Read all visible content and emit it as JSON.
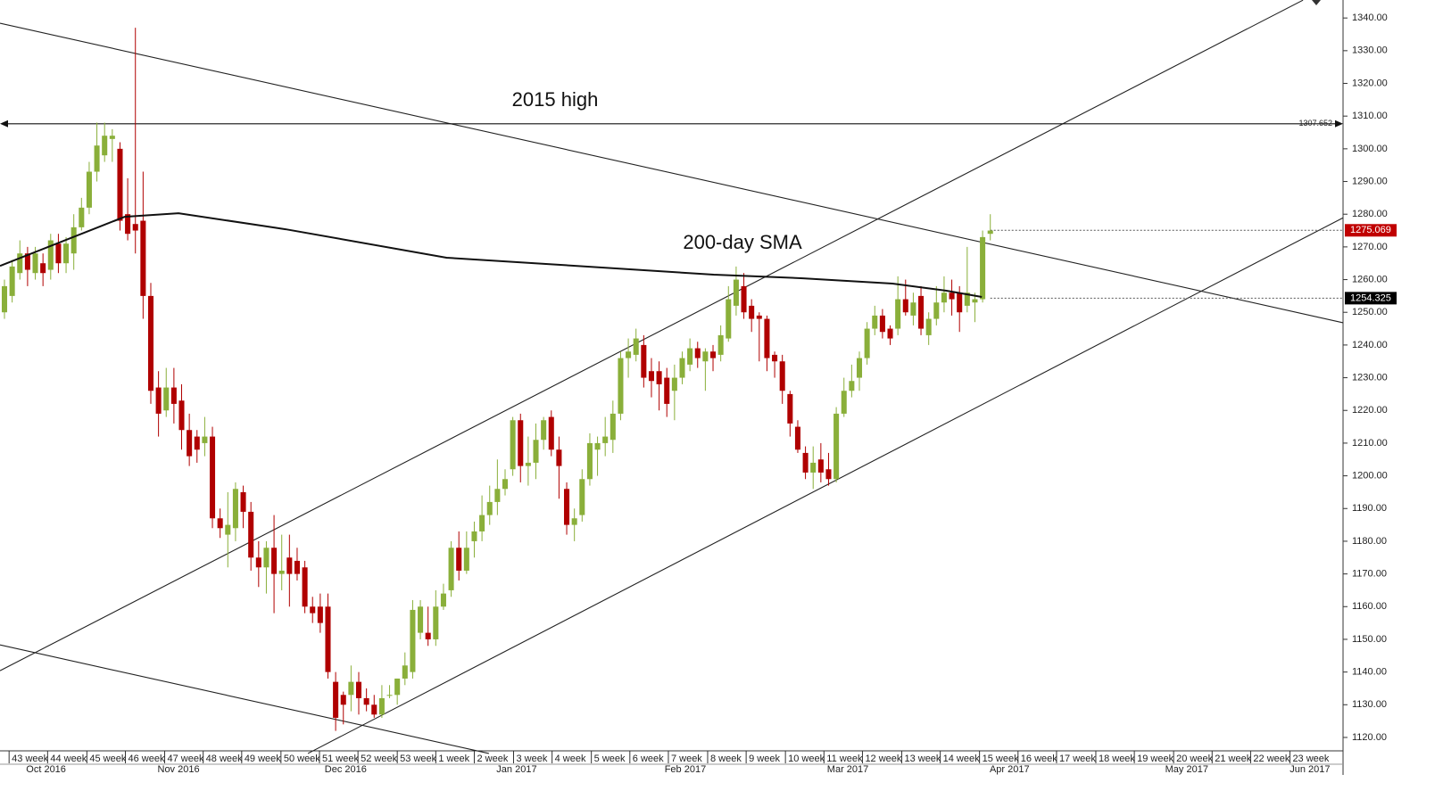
{
  "chart_data": {
    "type": "candlestick",
    "up_color": "#8aaf3a",
    "down_color": "#b00000",
    "xlim": [
      -0.58,
      173.8
    ],
    "ylim": [
      1115.9,
      1345.5
    ],
    "yticks": [
      {
        "value": 1120,
        "label": "1120.00"
      },
      {
        "value": 1130,
        "label": "1130.00"
      },
      {
        "value": 1140,
        "label": "1140.00"
      },
      {
        "value": 1150,
        "label": "1150.00"
      },
      {
        "value": 1160,
        "label": "1160.00"
      },
      {
        "value": 1170,
        "label": "1170.00"
      },
      {
        "value": 1180,
        "label": "1180.00"
      },
      {
        "value": 1190,
        "label": "1190.00"
      },
      {
        "value": 1200,
        "label": "1200.00"
      },
      {
        "value": 1210,
        "label": "1210.00"
      },
      {
        "value": 1220,
        "label": "1220.00"
      },
      {
        "value": 1230,
        "label": "1230.00"
      },
      {
        "value": 1240,
        "label": "1240.00"
      },
      {
        "value": 1250,
        "label": "1250.00"
      },
      {
        "value": 1260,
        "label": "1260.00"
      },
      {
        "value": 1270,
        "label": "1270.00"
      },
      {
        "value": 1280,
        "label": "1280.00"
      },
      {
        "value": 1290,
        "label": "1290.00"
      },
      {
        "value": 1300,
        "label": "1300.00"
      },
      {
        "value": 1310,
        "label": "1310.00"
      },
      {
        "value": 1320,
        "label": "1320.00"
      },
      {
        "value": 1330,
        "label": "1330.00"
      },
      {
        "value": 1340,
        "label": "1340.00"
      }
    ],
    "xticks": [
      {
        "value": 0.6,
        "label": "43 week"
      },
      {
        "value": 5.6,
        "label": "44 week"
      },
      {
        "value": 10.7,
        "label": "45 week"
      },
      {
        "value": 15.7,
        "label": "46 week"
      },
      {
        "value": 20.8,
        "label": "47 week"
      },
      {
        "value": 25.8,
        "label": "48 week"
      },
      {
        "value": 30.8,
        "label": "49 week"
      },
      {
        "value": 35.9,
        "label": "50 week"
      },
      {
        "value": 40.9,
        "label": "51 week"
      },
      {
        "value": 45.9,
        "label": "52 week"
      },
      {
        "value": 51.0,
        "label": "53 week"
      },
      {
        "value": 56.0,
        "label": "1 week"
      },
      {
        "value": 61.0,
        "label": "2 week"
      },
      {
        "value": 66.1,
        "label": "3 week"
      },
      {
        "value": 71.1,
        "label": "4 week"
      },
      {
        "value": 76.2,
        "label": "5 week"
      },
      {
        "value": 81.2,
        "label": "6 week"
      },
      {
        "value": 86.2,
        "label": "7 week"
      },
      {
        "value": 91.3,
        "label": "8 week"
      },
      {
        "value": 96.3,
        "label": "9 week"
      },
      {
        "value": 101.4,
        "label": "10 week"
      },
      {
        "value": 106.4,
        "label": "11 week"
      },
      {
        "value": 111.4,
        "label": "12 week"
      },
      {
        "value": 116.5,
        "label": "13 week"
      },
      {
        "value": 121.5,
        "label": "14 week"
      },
      {
        "value": 126.6,
        "label": "15 week"
      },
      {
        "value": 131.6,
        "label": "16 week"
      },
      {
        "value": 136.6,
        "label": "17 week"
      },
      {
        "value": 141.7,
        "label": "18 week"
      },
      {
        "value": 146.7,
        "label": "19 week"
      },
      {
        "value": 151.8,
        "label": "20 week"
      },
      {
        "value": 156.8,
        "label": "21 week"
      },
      {
        "value": 161.8,
        "label": "22 week"
      },
      {
        "value": 166.9,
        "label": "23 week"
      }
    ],
    "month_ticks": [
      {
        "value": 5.4,
        "label": "Oct 2016"
      },
      {
        "value": 22.6,
        "label": "Nov 2016"
      },
      {
        "value": 44.3,
        "label": "Dec 2016"
      },
      {
        "value": 66.5,
        "label": "Jan 2017"
      },
      {
        "value": 88.4,
        "label": "Feb 2017"
      },
      {
        "value": 109.5,
        "label": "Mar 2017"
      },
      {
        "value": 130.5,
        "label": "Apr 2017"
      },
      {
        "value": 153.5,
        "label": "May 2017"
      },
      {
        "value": 169.5,
        "label": "Jun 2017"
      }
    ],
    "ohlc": [
      [
        1250,
        1260,
        1248,
        1258
      ],
      [
        1255,
        1266,
        1253,
        1264
      ],
      [
        1262,
        1272,
        1260,
        1268
      ],
      [
        1268,
        1270,
        1258,
        1263
      ],
      [
        1262,
        1270,
        1260,
        1268
      ],
      [
        1265,
        1268,
        1258,
        1262
      ],
      [
        1263,
        1274,
        1260,
        1272
      ],
      [
        1271,
        1274,
        1262,
        1265
      ],
      [
        1265,
        1273,
        1262,
        1271
      ],
      [
        1268,
        1280,
        1263,
        1276
      ],
      [
        1276,
        1285,
        1275,
        1282
      ],
      [
        1282,
        1296,
        1280,
        1293
      ],
      [
        1293,
        1308,
        1290,
        1301
      ],
      [
        1298,
        1308,
        1296,
        1304
      ],
      [
        1303,
        1306,
        1296,
        1304
      ],
      [
        1300,
        1302,
        1275,
        1278
      ],
      [
        1280,
        1291,
        1272,
        1274
      ],
      [
        1277,
        1337,
        1268,
        1275
      ],
      [
        1278,
        1293,
        1248,
        1255
      ],
      [
        1255,
        1259,
        1222,
        1226
      ],
      [
        1227,
        1232,
        1212,
        1219
      ],
      [
        1220,
        1233,
        1218,
        1227
      ],
      [
        1227,
        1233,
        1216,
        1222
      ],
      [
        1223,
        1228,
        1208,
        1214
      ],
      [
        1214,
        1219,
        1203,
        1206
      ],
      [
        1212,
        1214,
        1204,
        1208
      ],
      [
        1210,
        1218,
        1206,
        1212
      ],
      [
        1212,
        1215,
        1184,
        1187
      ],
      [
        1187,
        1190,
        1181,
        1184
      ],
      [
        1182,
        1195,
        1172,
        1185
      ],
      [
        1184,
        1198,
        1180,
        1196
      ],
      [
        1195,
        1197,
        1184,
        1189
      ],
      [
        1189,
        1192,
        1171,
        1175
      ],
      [
        1175,
        1180,
        1166,
        1172
      ],
      [
        1172,
        1180,
        1164,
        1178
      ],
      [
        1178,
        1188,
        1158,
        1170
      ],
      [
        1170,
        1182,
        1165,
        1171
      ],
      [
        1175,
        1182,
        1160,
        1170
      ],
      [
        1174,
        1178,
        1168,
        1170
      ],
      [
        1172,
        1174,
        1158,
        1160
      ],
      [
        1160,
        1163,
        1155,
        1158
      ],
      [
        1160,
        1164,
        1152,
        1155
      ],
      [
        1160,
        1164,
        1138,
        1140
      ],
      [
        1137,
        1140,
        1122,
        1126
      ],
      [
        1133,
        1134,
        1124,
        1130
      ],
      [
        1133,
        1142,
        1128,
        1137
      ],
      [
        1137,
        1140,
        1127,
        1132
      ],
      [
        1132,
        1135,
        1128,
        1130
      ],
      [
        1130,
        1133,
        1126,
        1127
      ],
      [
        1127,
        1136,
        1126,
        1132
      ],
      [
        1133,
        1136,
        1132,
        1133
      ],
      [
        1133,
        1138,
        1130,
        1138
      ],
      [
        1138,
        1146,
        1136,
        1142
      ],
      [
        1140,
        1162,
        1138,
        1159
      ],
      [
        1152,
        1162,
        1150,
        1160
      ],
      [
        1152,
        1160,
        1148,
        1150
      ],
      [
        1150,
        1165,
        1148,
        1160
      ],
      [
        1160,
        1167,
        1159,
        1164
      ],
      [
        1165,
        1180,
        1163,
        1178
      ],
      [
        1178,
        1183,
        1168,
        1171
      ],
      [
        1171,
        1183,
        1170,
        1178
      ],
      [
        1180,
        1186,
        1175,
        1183
      ],
      [
        1183,
        1194,
        1180,
        1188
      ],
      [
        1188,
        1197,
        1185,
        1192
      ],
      [
        1192,
        1205,
        1188,
        1196
      ],
      [
        1196,
        1202,
        1194,
        1199
      ],
      [
        1202,
        1218,
        1200,
        1217
      ],
      [
        1217,
        1219,
        1198,
        1203
      ],
      [
        1203,
        1212,
        1197,
        1204
      ],
      [
        1204,
        1216,
        1199,
        1211
      ],
      [
        1211,
        1218,
        1208,
        1217
      ],
      [
        1218,
        1220,
        1206,
        1208
      ],
      [
        1208,
        1212,
        1193,
        1203
      ],
      [
        1196,
        1198,
        1182,
        1185
      ],
      [
        1185,
        1190,
        1180,
        1187
      ],
      [
        1188,
        1202,
        1186,
        1199
      ],
      [
        1199,
        1213,
        1197,
        1210
      ],
      [
        1208,
        1212,
        1200,
        1210
      ],
      [
        1210,
        1218,
        1206,
        1212
      ],
      [
        1211,
        1223,
        1207,
        1219
      ],
      [
        1219,
        1238,
        1217,
        1236
      ],
      [
        1236,
        1242,
        1230,
        1238
      ],
      [
        1237,
        1245,
        1235,
        1242
      ],
      [
        1240,
        1243,
        1227,
        1230
      ],
      [
        1232,
        1236,
        1224,
        1229
      ],
      [
        1232,
        1235,
        1220,
        1228
      ],
      [
        1230,
        1233,
        1218,
        1222
      ],
      [
        1226,
        1234,
        1217,
        1230
      ],
      [
        1230,
        1238,
        1228,
        1236
      ],
      [
        1234,
        1242,
        1232,
        1239
      ],
      [
        1239,
        1241,
        1233,
        1236
      ],
      [
        1235,
        1239,
        1226,
        1238
      ],
      [
        1238,
        1240,
        1232,
        1236
      ],
      [
        1237,
        1246,
        1235,
        1243
      ],
      [
        1242,
        1258,
        1241,
        1254
      ],
      [
        1252,
        1264,
        1249,
        1260
      ],
      [
        1258,
        1262,
        1248,
        1250
      ],
      [
        1252,
        1254,
        1244,
        1248
      ],
      [
        1249,
        1250,
        1235,
        1248
      ],
      [
        1248,
        1249,
        1232,
        1236
      ],
      [
        1237,
        1238,
        1230,
        1235
      ],
      [
        1235,
        1237,
        1222,
        1226
      ],
      [
        1225,
        1226,
        1212,
        1216
      ],
      [
        1215,
        1217,
        1207,
        1208
      ],
      [
        1207,
        1209,
        1199,
        1201
      ],
      [
        1201,
        1209,
        1196,
        1204
      ],
      [
        1205,
        1210,
        1198,
        1201
      ],
      [
        1202,
        1207,
        1197,
        1199
      ],
      [
        1199,
        1221,
        1198,
        1219
      ],
      [
        1219,
        1230,
        1218,
        1226
      ],
      [
        1226,
        1234,
        1224,
        1229
      ],
      [
        1230,
        1238,
        1226,
        1236
      ],
      [
        1236,
        1247,
        1234,
        1245
      ],
      [
        1245,
        1252,
        1243,
        1249
      ],
      [
        1249,
        1251,
        1242,
        1244
      ],
      [
        1245,
        1246,
        1240,
        1242
      ],
      [
        1245,
        1261,
        1243,
        1254
      ],
      [
        1254,
        1260,
        1249,
        1250
      ],
      [
        1249,
        1256,
        1246,
        1253
      ],
      [
        1255,
        1258,
        1243,
        1245
      ],
      [
        1243,
        1250,
        1240,
        1248
      ],
      [
        1248,
        1258,
        1246,
        1253
      ],
      [
        1253,
        1261,
        1250,
        1256
      ],
      [
        1256,
        1260,
        1249,
        1254
      ],
      [
        1256,
        1258,
        1244,
        1250
      ],
      [
        1252,
        1270,
        1250,
        1256
      ],
      [
        1253,
        1256,
        1247,
        1254
      ],
      [
        1254,
        1275,
        1253,
        1273
      ],
      [
        1274,
        1280,
        1272,
        1275
      ]
    ],
    "sma": {
      "x": [
        -0.58,
        15.6,
        22.6,
        36.5,
        57.4,
        68.9,
        92.1,
        103.7,
        115.3,
        122.3,
        126.9
      ],
      "values": [
        1264.2,
        1279.2,
        1280.3,
        1275.4,
        1266.7,
        1265.0,
        1261.5,
        1260.4,
        1258.8,
        1256.6,
        1254.7
      ]
    },
    "trendlines": [
      {
        "x": [
          -0.58,
          173.8
        ],
        "values": [
          1338.4,
          1246.8
        ]
      },
      {
        "x": [
          -0.58,
          168.6
        ],
        "values": [
          1140.4,
          1345.45
        ]
      },
      {
        "x": [
          39.4,
          173.8
        ],
        "values": [
          1115.1,
          1278.9
        ]
      },
      {
        "x": [
          -0.58,
          62.9
        ],
        "values": [
          1148.3,
          1115.1
        ]
      }
    ],
    "levels": [
      {
        "value": 1307.652,
        "label": "1307.652",
        "style": "arrow"
      },
      {
        "value": 1275.069,
        "label": "1275.069",
        "style": "box",
        "color": "#c00000"
      },
      {
        "value": 1254.325,
        "label": "1254.325",
        "style": "box",
        "color": "#000000"
      }
    ],
    "annotations": [
      "2015 high",
      "200-day SMA"
    ]
  }
}
